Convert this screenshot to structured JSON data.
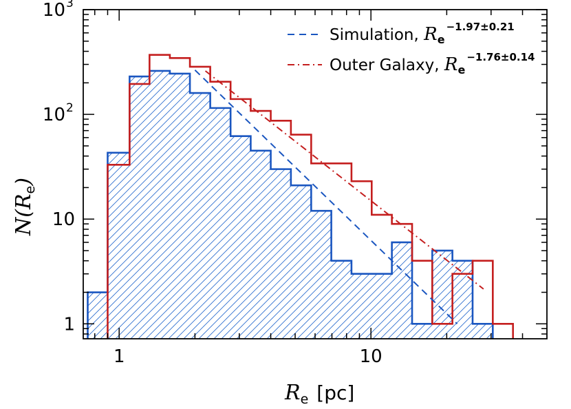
{
  "chart_data": {
    "type": "histogram",
    "x_scale": "log",
    "y_scale": "log",
    "xlim": [
      0.72,
      50
    ],
    "ylim": [
      0.72,
      1000
    ],
    "x_major_ticks": [
      {
        "value": 1,
        "label": "1"
      },
      {
        "value": 10,
        "label": "10"
      }
    ],
    "y_major_ticks": [
      {
        "value": 1,
        "label": "1"
      },
      {
        "value": 10,
        "label": "10"
      },
      {
        "value": 100,
        "base": "10",
        "exp": "2"
      },
      {
        "value": 1000,
        "base": "10",
        "exp": "3"
      }
    ],
    "xlabel": {
      "symbol": "R",
      "sub": "e",
      "unit": "[pc]"
    },
    "ylabel": {
      "func": "N",
      "symbol": "R",
      "sub": "e"
    },
    "bin_edges": [
      0.75,
      0.9,
      1.1,
      1.32,
      1.59,
      1.91,
      2.3,
      2.77,
      3.33,
      4.0,
      4.81,
      5.79,
      6.96,
      8.37,
      10.07,
      12.11,
      14.57,
      17.52,
      21.07,
      25.34,
      30.48,
      36.66
    ],
    "series": [
      {
        "name": "Simulation",
        "color": "#1a56c0",
        "hatched": true,
        "counts": [
          2,
          43,
          230,
          260,
          245,
          160,
          115,
          62,
          45,
          30,
          21,
          12,
          4,
          3,
          3,
          6,
          1,
          5,
          4,
          1,
          0
        ]
      },
      {
        "name": "Outer Galaxy",
        "color": "#c41e1e",
        "hatched": false,
        "counts": [
          0,
          33,
          195,
          370,
          345,
          285,
          205,
          140,
          108,
          87,
          64,
          34,
          34,
          23,
          11,
          9,
          4,
          1,
          3,
          4,
          1
        ]
      }
    ],
    "fits": [
      {
        "series": "Simulation",
        "style": "dashed",
        "color": "#1a56c0",
        "x_range": [
          2.0,
          22.0
        ],
        "y_range": [
          265,
          1.0
        ]
      },
      {
        "series": "Outer Galaxy",
        "style": "dash-dot",
        "color": "#c41e1e",
        "x_range": [
          2.2,
          28.0
        ],
        "y_range": [
          260,
          2.15
        ]
      }
    ],
    "legend": {
      "position": "top-right",
      "entries": [
        {
          "label": "Simulation, ",
          "r": "R",
          "rsub": "e",
          "exp": "−1.97±0.21",
          "style": "dashed",
          "color": "#1a56c0"
        },
        {
          "label": "Outer Galaxy, ",
          "r": "R",
          "rsub": "e",
          "exp": "−1.76±0.14",
          "style": "dash-dot",
          "color": "#c41e1e"
        }
      ]
    }
  }
}
